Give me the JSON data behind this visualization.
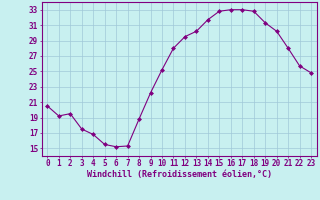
{
  "x": [
    0,
    1,
    2,
    3,
    4,
    5,
    6,
    7,
    8,
    9,
    10,
    11,
    12,
    13,
    14,
    15,
    16,
    17,
    18,
    19,
    20,
    21,
    22,
    23
  ],
  "y": [
    20.5,
    19.2,
    19.5,
    17.5,
    16.8,
    15.5,
    15.2,
    15.3,
    18.8,
    22.2,
    25.2,
    28.0,
    29.5,
    30.2,
    31.7,
    32.8,
    33.0,
    33.0,
    32.8,
    31.3,
    30.2,
    28.0,
    25.7,
    24.8
  ],
  "line_color": "#800080",
  "marker": "D",
  "marker_size": 2,
  "bg_color": "#c8f0f0",
  "grid_color": "#a0c8d8",
  "xlabel": "Windchill (Refroidissement éolien,°C)",
  "xlim": [
    -0.5,
    23.5
  ],
  "ylim": [
    14,
    34
  ],
  "yticks": [
    15,
    17,
    19,
    21,
    23,
    25,
    27,
    29,
    31,
    33
  ],
  "xticks": [
    0,
    1,
    2,
    3,
    4,
    5,
    6,
    7,
    8,
    9,
    10,
    11,
    12,
    13,
    14,
    15,
    16,
    17,
    18,
    19,
    20,
    21,
    22,
    23
  ],
  "tick_color": "#800080",
  "label_color": "#800080",
  "xlabel_fontsize": 6.0,
  "tick_fontsize": 5.5
}
